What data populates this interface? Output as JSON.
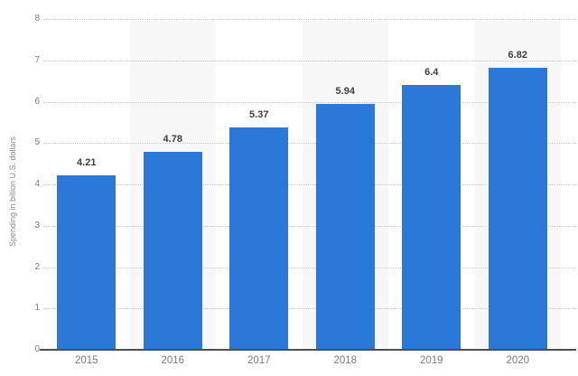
{
  "chart_data": {
    "type": "bar",
    "title": "",
    "categories": [
      "2015",
      "2016",
      "2017",
      "2018",
      "2019",
      "2020"
    ],
    "values": [
      4.21,
      4.78,
      5.37,
      5.94,
      6.4,
      6.82
    ],
    "value_labels": [
      "4.21",
      "4.78",
      "5.37",
      "5.94",
      "6.4",
      "6.82"
    ],
    "xlabel": "",
    "ylabel": "Spending in billion U.S. dollars",
    "ylim": [
      0,
      8
    ],
    "yticks": [
      "0",
      "1",
      "2",
      "3",
      "4",
      "5",
      "6",
      "7",
      "8"
    ],
    "grid": "horizontal-dotted",
    "legend": "none",
    "colors": {
      "bar": "#2b78d9",
      "alt_band": "#f7f7f7",
      "gridline": "#cccccc",
      "axis_line": "#4f4f4f",
      "tick_label": "#7b7b7b",
      "value_label": "#404040",
      "background": "#ffffff"
    }
  }
}
